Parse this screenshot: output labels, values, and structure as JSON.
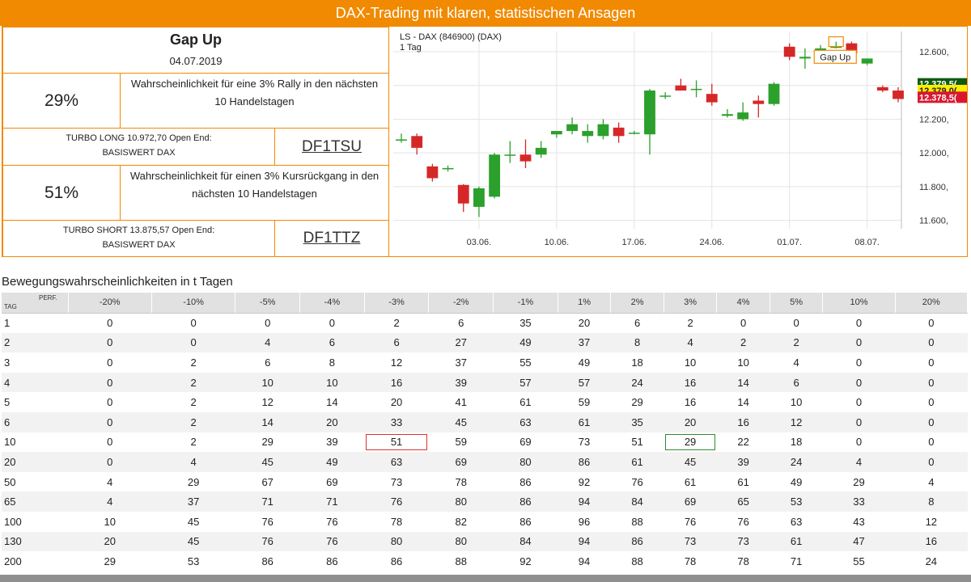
{
  "banner": {
    "text": "DAX-Trading mit klaren, statistischen Ansagen"
  },
  "signal": {
    "title": "Gap Up",
    "date": "04.07.2019"
  },
  "long": {
    "pct": "29%",
    "desc_line1": "Wahrscheinlichkeit für eine 3% Rally in den nächsten",
    "desc_line2": "10 Handelstagen",
    "turbo_line1": "TURBO LONG 10.972,70 Open End:",
    "turbo_line2": "BASISWERT DAX",
    "code": "DF1TSU"
  },
  "short": {
    "pct": "51%",
    "desc_line1": "Wahrscheinlichkeit für einen 3% Kursrückgang in den",
    "desc_line2": "nächsten 10 Handelstagen",
    "turbo_line1": "TURBO SHORT 13.875,57 Open End:",
    "turbo_line2": "BASISWERT DAX",
    "code": "DF1TTZ"
  },
  "chart_data": {
    "type": "candlestick",
    "title": "LS - DAX (846900) (DAX)",
    "subtitle": "1 Tag",
    "ylim": [
      11550,
      12720
    ],
    "y_ticks": [
      11600,
      11800,
      12000,
      12200,
      12400,
      12600
    ],
    "y_tick_labels": [
      "11.600,",
      "11.800,",
      "12.000,",
      "12.200,",
      "12.400,",
      "12.600,"
    ],
    "x_ticks": [
      {
        "label": "03.06.",
        "idx": 5
      },
      {
        "label": "10.06.",
        "idx": 10
      },
      {
        "label": "17.06.",
        "idx": 15
      },
      {
        "label": "24.06.",
        "idx": 20
      },
      {
        "label": "01.07.",
        "idx": 25
      },
      {
        "label": "08.07.",
        "idx": 30
      }
    ],
    "candles": [
      {
        "o": 12080,
        "h": 12115,
        "l": 12060,
        "c": 12080
      },
      {
        "o": 12100,
        "h": 12115,
        "l": 11990,
        "c": 12030
      },
      {
        "o": 11920,
        "h": 11935,
        "l": 11830,
        "c": 11850
      },
      {
        "o": 11910,
        "h": 11925,
        "l": 11890,
        "c": 11910
      },
      {
        "o": 11810,
        "h": 11815,
        "l": 11650,
        "c": 11700
      },
      {
        "o": 11680,
        "h": 11800,
        "l": 11620,
        "c": 11790
      },
      {
        "o": 11740,
        "h": 12000,
        "l": 11730,
        "c": 11990
      },
      {
        "o": 11990,
        "h": 12070,
        "l": 11940,
        "c": 11990
      },
      {
        "o": 11990,
        "h": 12080,
        "l": 11910,
        "c": 11950
      },
      {
        "o": 11990,
        "h": 12070,
        "l": 11970,
        "c": 12030
      },
      {
        "o": 12110,
        "h": 12130,
        "l": 12090,
        "c": 12130
      },
      {
        "o": 12130,
        "h": 12210,
        "l": 12110,
        "c": 12170
      },
      {
        "o": 12100,
        "h": 12170,
        "l": 12060,
        "c": 12130
      },
      {
        "o": 12100,
        "h": 12200,
        "l": 12080,
        "c": 12170
      },
      {
        "o": 12150,
        "h": 12180,
        "l": 12060,
        "c": 12100
      },
      {
        "o": 12120,
        "h": 12130,
        "l": 12110,
        "c": 12120
      },
      {
        "o": 12110,
        "h": 12380,
        "l": 11990,
        "c": 12370
      },
      {
        "o": 12340,
        "h": 12360,
        "l": 12320,
        "c": 12340
      },
      {
        "o": 12400,
        "h": 12440,
        "l": 12370,
        "c": 12370
      },
      {
        "o": 12380,
        "h": 12430,
        "l": 12330,
        "c": 12380
      },
      {
        "o": 12350,
        "h": 12410,
        "l": 12280,
        "c": 12300
      },
      {
        "o": 12220,
        "h": 12260,
        "l": 12210,
        "c": 12230
      },
      {
        "o": 12200,
        "h": 12300,
        "l": 12190,
        "c": 12240
      },
      {
        "o": 12310,
        "h": 12340,
        "l": 12210,
        "c": 12290
      },
      {
        "o": 12290,
        "h": 12420,
        "l": 12280,
        "c": 12410
      },
      {
        "o": 12630,
        "h": 12650,
        "l": 12550,
        "c": 12570
      },
      {
        "o": 12560,
        "h": 12620,
        "l": 12500,
        "c": 12570
      },
      {
        "o": 12560,
        "h": 12640,
        "l": 12550,
        "c": 12620
      },
      {
        "o": 12630,
        "h": 12660,
        "l": 12620,
        "c": 12630
      },
      {
        "o": 12650,
        "h": 12660,
        "l": 12580,
        "c": 12590
      },
      {
        "o": 12530,
        "h": 12560,
        "l": 12520,
        "c": 12560
      },
      {
        "o": 12390,
        "h": 12400,
        "l": 12360,
        "c": 12370
      },
      {
        "o": 12370,
        "h": 12390,
        "l": 12300,
        "c": 12320
      }
    ],
    "annotation": {
      "label": "Gap Up",
      "idx": 28
    },
    "price_labels": [
      {
        "text": "12.379,5(",
        "color": "#0f5a0f",
        "price": 12410
      },
      {
        "text": "12.379,0(",
        "color": "#ffee00",
        "price": 12370
      },
      {
        "text": "12.378,5(",
        "color": "#d81830",
        "price": 12330
      }
    ],
    "colors": {
      "up": "#2ca02c",
      "down": "#d62728",
      "grid": "#e4e4e4",
      "axis": "#333333"
    }
  },
  "table": {
    "section_title": "Bewegungswahrscheinlichkeiten in t Tagen",
    "corner_perf": "PERF.",
    "corner_tag": "TAG",
    "headers": [
      "-20%",
      "-10%",
      "-5%",
      "-4%",
      "-3%",
      "-2%",
      "-1%",
      "1%",
      "2%",
      "3%",
      "4%",
      "5%",
      "10%",
      "20%"
    ],
    "rows": [
      [
        "1",
        "0",
        "0",
        "0",
        "0",
        "2",
        "6",
        "35",
        "20",
        "6",
        "2",
        "0",
        "0",
        "0",
        "0"
      ],
      [
        "2",
        "0",
        "0",
        "4",
        "6",
        "6",
        "27",
        "49",
        "37",
        "8",
        "4",
        "2",
        "2",
        "0",
        "0"
      ],
      [
        "3",
        "0",
        "2",
        "6",
        "8",
        "12",
        "37",
        "55",
        "49",
        "18",
        "10",
        "10",
        "4",
        "0",
        "0"
      ],
      [
        "4",
        "0",
        "2",
        "10",
        "10",
        "16",
        "39",
        "57",
        "57",
        "24",
        "16",
        "14",
        "6",
        "0",
        "0"
      ],
      [
        "5",
        "0",
        "2",
        "12",
        "14",
        "20",
        "41",
        "61",
        "59",
        "29",
        "16",
        "14",
        "10",
        "0",
        "0"
      ],
      [
        "6",
        "0",
        "2",
        "14",
        "20",
        "33",
        "45",
        "63",
        "61",
        "35",
        "20",
        "16",
        "12",
        "0",
        "0"
      ],
      [
        "10",
        "0",
        "2",
        "29",
        "39",
        "51",
        "59",
        "69",
        "73",
        "51",
        "29",
        "22",
        "18",
        "0",
        "0"
      ],
      [
        "20",
        "0",
        "4",
        "45",
        "49",
        "63",
        "69",
        "80",
        "86",
        "61",
        "45",
        "39",
        "24",
        "4",
        "0"
      ],
      [
        "50",
        "4",
        "29",
        "67",
        "69",
        "73",
        "78",
        "86",
        "92",
        "76",
        "61",
        "61",
        "49",
        "29",
        "4"
      ],
      [
        "65",
        "4",
        "37",
        "71",
        "71",
        "76",
        "80",
        "86",
        "94",
        "84",
        "69",
        "65",
        "53",
        "33",
        "8"
      ],
      [
        "100",
        "10",
        "45",
        "76",
        "76",
        "78",
        "82",
        "86",
        "96",
        "88",
        "76",
        "76",
        "63",
        "43",
        "12"
      ],
      [
        "130",
        "20",
        "45",
        "76",
        "76",
        "80",
        "80",
        "84",
        "94",
        "86",
        "73",
        "73",
        "61",
        "47",
        "16"
      ],
      [
        "200",
        "29",
        "53",
        "86",
        "86",
        "86",
        "88",
        "92",
        "94",
        "88",
        "78",
        "78",
        "71",
        "55",
        "24"
      ]
    ]
  }
}
